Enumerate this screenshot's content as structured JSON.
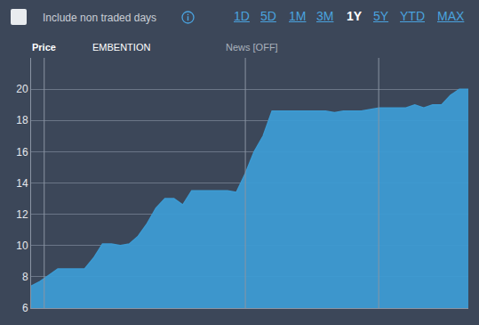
{
  "header": {
    "checkbox_label": "Include non traded days",
    "ranges": [
      "1D",
      "5D",
      "1M",
      "3M",
      "1Y",
      "5Y",
      "YTD",
      "MAX"
    ],
    "selected_range": "1Y",
    "series_label": "Price",
    "news": "News [OFF]"
  },
  "chart_data": {
    "type": "area",
    "categories": [
      null,
      null,
      null,
      null,
      null,
      null,
      null,
      null,
      null,
      null,
      null,
      null,
      null,
      null,
      null,
      null,
      null,
      null,
      null,
      null,
      null,
      null,
      null,
      null,
      null,
      null,
      null,
      null,
      null,
      null,
      null,
      null,
      null,
      null,
      null,
      null,
      null,
      null,
      null,
      null,
      null,
      null,
      null,
      null,
      null,
      null,
      null,
      null,
      null,
      null
    ],
    "series": [
      {
        "name": "EMBENTION",
        "color": "#3d9bd3",
        "values": [
          7.4,
          7.7,
          8.1,
          8.5,
          8.5,
          8.5,
          8.5,
          9.2,
          10.1,
          10.1,
          10.0,
          10.1,
          10.6,
          11.4,
          12.4,
          13.0,
          13.0,
          12.6,
          13.5,
          13.5,
          13.5,
          13.5,
          13.5,
          13.4,
          14.6,
          16.0,
          17.0,
          18.6,
          18.6,
          18.6,
          18.6,
          18.6,
          18.6,
          18.6,
          18.5,
          18.6,
          18.6,
          18.6,
          18.7,
          18.8,
          18.8,
          18.8,
          18.8,
          19.0,
          18.8,
          19.0,
          19.0,
          19.6,
          20.0,
          20.0
        ]
      }
    ],
    "ylim": [
      6,
      22
    ],
    "yticks": [
      6,
      8,
      10,
      12,
      14,
      16,
      18,
      20
    ],
    "grid": true,
    "tick_labels": "y"
  }
}
